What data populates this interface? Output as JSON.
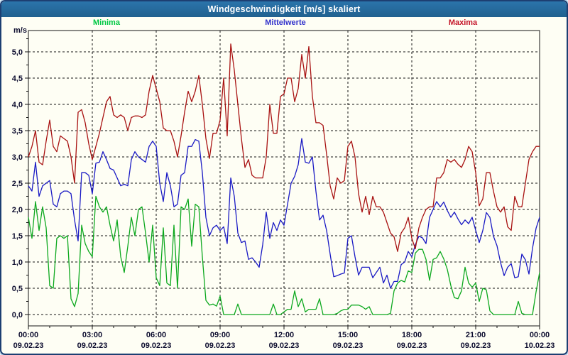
{
  "titlebar": {
    "title": "Windgeschwindigkeit [m/s] skaliert"
  },
  "chart_data": {
    "type": "line",
    "title": "Windgeschwindigkeit [m/s] skaliert",
    "xlabel": "",
    "ylabel": "m/s",
    "ylim": [
      0,
      5.4
    ],
    "grid": "dashed",
    "legend_position": "top",
    "sample_interval_minutes": 10,
    "y_ticks": [
      "0,0",
      "0,5",
      "1,0",
      "1,5",
      "2,0",
      "2,5",
      "3,0",
      "3,5",
      "4,0",
      "4,5",
      "5,0"
    ],
    "x_ticks": [
      {
        "time": "00:00",
        "date": "09.02.23"
      },
      {
        "time": "03:00",
        "date": "09.02.23"
      },
      {
        "time": "06:00",
        "date": "09.02.23"
      },
      {
        "time": "09:00",
        "date": "09.02.23"
      },
      {
        "time": "12:00",
        "date": "09.02.23"
      },
      {
        "time": "15:00",
        "date": "09.02.23"
      },
      {
        "time": "18:00",
        "date": "09.02.23"
      },
      {
        "time": "21:00",
        "date": "09.02.23"
      },
      {
        "time": "00:00",
        "date": "10.02.23"
      }
    ],
    "series": [
      {
        "name": "Minima",
        "color": "#0ca81e",
        "legend_color": "#00c844",
        "values": [
          1.85,
          1.45,
          2.15,
          1.6,
          2.05,
          1.65,
          0.55,
          0.5,
          1.45,
          1.5,
          1.45,
          1.5,
          0.3,
          0.15,
          0.4,
          1.7,
          1.35,
          1.2,
          1.1,
          2.25,
          2.05,
          1.95,
          2.05,
          1.7,
          1.4,
          1.8,
          1.1,
          0.8,
          1.3,
          1.85,
          1.5,
          2.0,
          2.05,
          1.55,
          1.0,
          1.7,
          0.7,
          0.55,
          1.65,
          0.6,
          0.55,
          1.7,
          0.5,
          2.05,
          2.0,
          2.2,
          1.3,
          2.1,
          2.05,
          1.1,
          0.27,
          0.18,
          0.2,
          0.16,
          0.35,
          0.0,
          0.0,
          0.0,
          0.0,
          0.2,
          0.0,
          0.0,
          0.0,
          0.0,
          0.0,
          0.0,
          0.0,
          0.0,
          0.0,
          0.2,
          0.0,
          0.0,
          0.05,
          0.1,
          0.1,
          0.45,
          0.15,
          0.3,
          0.05,
          0.1,
          0.1,
          0.1,
          0.3,
          0.0,
          0.0,
          0.0,
          0.0,
          0.02,
          0.07,
          0.1,
          0.1,
          0.18,
          0.18,
          0.18,
          0.15,
          0.1,
          0.15,
          0.0,
          0.0,
          0.0,
          0.0,
          0.0,
          0.02,
          0.45,
          0.6,
          0.65,
          0.62,
          0.83,
          0.8,
          1.17,
          1.24,
          1.24,
          1.05,
          0.65,
          1.05,
          1.08,
          1.2,
          1.06,
          0.86,
          0.55,
          0.32,
          0.3,
          0.45,
          0.9,
          0.6,
          0.52,
          0.6,
          0.25,
          0.5,
          0.47,
          0.07,
          0.0,
          0.0,
          0.0,
          0.0,
          0.0,
          0.0,
          0.0,
          0.25,
          0.02,
          0.0,
          0.0,
          0.0,
          0.43,
          0.8
        ]
      },
      {
        "name": "Mittelwerte",
        "color": "#1a1ac4",
        "legend_color": "#3333cc",
        "values": [
          2.45,
          2.35,
          2.9,
          2.25,
          2.45,
          2.5,
          2.55,
          2.1,
          2.05,
          2.3,
          2.35,
          2.35,
          2.3,
          1.8,
          1.4,
          2.7,
          2.7,
          2.65,
          2.3,
          2.88,
          2.9,
          3.1,
          2.95,
          2.78,
          2.75,
          2.6,
          2.45,
          2.48,
          2.45,
          2.95,
          3.1,
          3.0,
          2.95,
          2.9,
          3.2,
          3.3,
          3.2,
          2.5,
          2.15,
          2.7,
          2.45,
          2.05,
          2.1,
          2.65,
          2.7,
          3.2,
          3.2,
          3.33,
          3.3,
          2.7,
          1.85,
          1.5,
          1.65,
          1.7,
          1.6,
          1.67,
          1.35,
          2.6,
          2.25,
          1.55,
          1.37,
          1.4,
          1.05,
          1.08,
          1.0,
          0.9,
          1.33,
          1.95,
          1.45,
          1.75,
          1.6,
          1.8,
          1.7,
          2.1,
          2.5,
          2.63,
          2.85,
          3.35,
          2.9,
          2.88,
          3.0,
          2.34,
          1.8,
          1.89,
          1.6,
          1.15,
          0.72,
          0.74,
          0.77,
          0.79,
          1.45,
          1.5,
          1.1,
          0.75,
          0.9,
          0.9,
          0.9,
          0.7,
          0.8,
          0.9,
          0.6,
          0.75,
          0.5,
          0.63,
          0.63,
          0.95,
          1.0,
          1.2,
          1.1,
          1.33,
          1.49,
          1.46,
          1.35,
          1.85,
          2.0,
          2.15,
          2.05,
          2.14,
          1.98,
          1.85,
          1.95,
          1.82,
          1.71,
          1.8,
          1.73,
          1.85,
          1.6,
          1.37,
          1.6,
          1.94,
          1.85,
          1.49,
          1.31,
          0.99,
          0.74,
          0.9,
          0.97,
          0.7,
          0.72,
          1.15,
          1.04,
          0.77,
          1.26,
          1.64,
          1.85
        ]
      },
      {
        "name": "Maxima",
        "color": "#a81212",
        "legend_color": "#c41428",
        "values": [
          3.0,
          3.2,
          3.5,
          2.9,
          2.85,
          3.3,
          3.7,
          3.2,
          3.1,
          3.4,
          3.35,
          3.3,
          3.0,
          2.5,
          3.85,
          3.9,
          3.65,
          3.25,
          2.95,
          3.2,
          3.45,
          3.75,
          4.05,
          4.15,
          3.8,
          3.75,
          3.8,
          3.75,
          3.5,
          3.75,
          3.78,
          3.78,
          3.75,
          3.8,
          4.25,
          4.55,
          4.3,
          4.05,
          3.55,
          3.5,
          3.5,
          3.3,
          3.0,
          3.4,
          3.85,
          4.25,
          4.05,
          4.25,
          4.55,
          4.0,
          3.35,
          2.97,
          3.45,
          3.45,
          3.7,
          4.5,
          3.4,
          5.15,
          4.65,
          4.0,
          3.35,
          2.8,
          2.95,
          2.65,
          2.6,
          2.6,
          2.6,
          3.0,
          4.0,
          3.45,
          3.45,
          4.15,
          4.2,
          4.5,
          4.5,
          4.05,
          4.3,
          4.95,
          4.5,
          5.1,
          4.15,
          3.65,
          3.65,
          3.6,
          3.05,
          2.45,
          2.2,
          2.6,
          2.5,
          2.55,
          3.2,
          3.3,
          3.0,
          2.3,
          1.95,
          2.25,
          1.9,
          2.25,
          2.05,
          2.05,
          1.95,
          1.75,
          1.55,
          1.48,
          1.2,
          1.55,
          1.65,
          1.85,
          1.45,
          1.25,
          1.65,
          1.85,
          2.0,
          2.05,
          2.05,
          2.6,
          2.6,
          2.7,
          2.95,
          2.9,
          2.95,
          2.86,
          2.8,
          2.95,
          3.2,
          3.1,
          2.7,
          2.07,
          2.2,
          2.7,
          2.7,
          2.35,
          2.05,
          1.95,
          2.05,
          1.67,
          1.6,
          2.25,
          2.05,
          2.05,
          2.5,
          2.95,
          3.1,
          3.2,
          3.2
        ]
      }
    ]
  }
}
